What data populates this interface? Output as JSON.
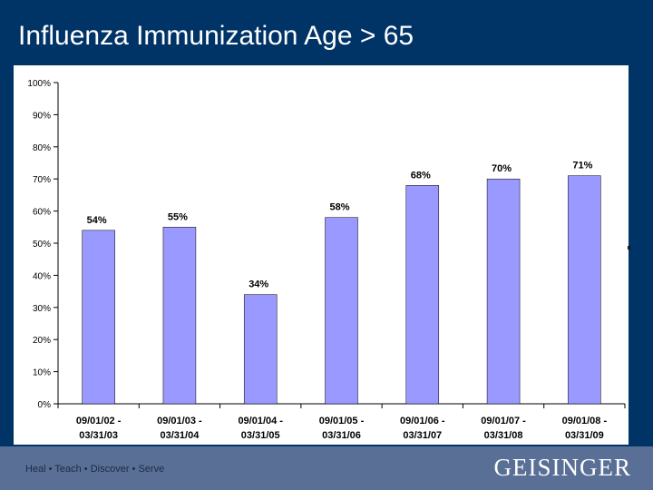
{
  "slide": {
    "title": "Influenza Immunization Age > 65",
    "tagline": "Heal • Teach • Discover • Serve",
    "logo": "GEISINGER"
  },
  "colors": {
    "background": "#003366",
    "bar_fill": "#9999ff",
    "footer": "#5a6f96"
  },
  "chart_data": {
    "type": "bar",
    "categories": [
      [
        "09/01/02 -",
        "03/31/03"
      ],
      [
        "09/01/03 -",
        "03/31/04"
      ],
      [
        "09/01/04 -",
        "03/31/05"
      ],
      [
        "09/01/05 -",
        "03/31/06"
      ],
      [
        "09/01/06 -",
        "03/31/07"
      ],
      [
        "09/01/07 -",
        "03/31/08"
      ],
      [
        "09/01/08 -",
        "03/31/09"
      ]
    ],
    "values": [
      54,
      55,
      34,
      58,
      68,
      70,
      71
    ],
    "value_labels": [
      "54%",
      "55%",
      "34%",
      "58%",
      "68%",
      "70%",
      "71%"
    ],
    "ylim": [
      0,
      100
    ],
    "yticks": [
      0,
      10,
      20,
      30,
      40,
      50,
      60,
      70,
      80,
      90,
      100
    ],
    "ytick_labels": [
      "0%",
      "10%",
      "20%",
      "30%",
      "40%",
      "50%",
      "60%",
      "70%",
      "80%",
      "90%",
      "100%"
    ],
    "grid": false,
    "legend": "none"
  }
}
